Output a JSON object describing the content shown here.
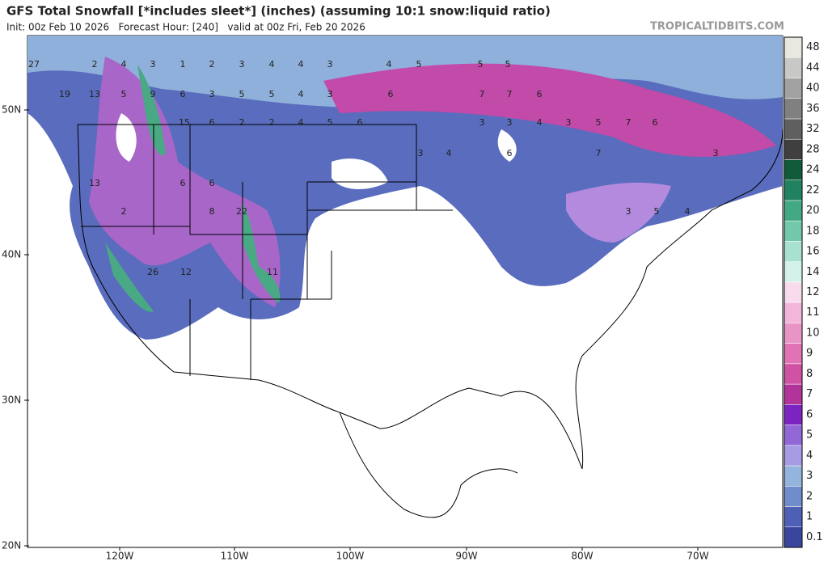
{
  "header": {
    "title": "GFS Total Snowfall [*includes sleet*] (inches) (assuming 10:1 snow:liquid ratio)",
    "subtitle": "Init: 00z Feb 10 2026   Forecast Hour: [240]   valid at 00z Fri, Feb 20 2026",
    "watermark": "TROPICALTIDBITS.COM"
  },
  "map": {
    "lat_labels": [
      "50N",
      "40N",
      "30N",
      "20N"
    ],
    "lon_labels": [
      "120W",
      "110W",
      "100W",
      "90W",
      "80W",
      "70W"
    ],
    "point_labels": [
      "27",
      "2",
      "4",
      "3",
      "1",
      "2",
      "3",
      "4",
      "4",
      "3",
      "4",
      "5",
      "5",
      "5",
      "19",
      "13",
      "5",
      "9",
      "6",
      "3",
      "5",
      "5",
      "4",
      "3",
      "6",
      "7",
      "7",
      "6",
      "15",
      "6",
      "2",
      "2",
      "4",
      "5",
      "6",
      "3",
      "3",
      "4",
      "3",
      "5",
      "7",
      "6",
      "13",
      "6",
      "6",
      "22",
      "8",
      "26",
      "12",
      "11",
      "2",
      "3",
      "4",
      "6",
      "7",
      "3",
      "5",
      "4",
      "3"
    ]
  },
  "colorbar": {
    "levels": [
      "0.1",
      "1",
      "2",
      "3",
      "4",
      "5",
      "6",
      "7",
      "8",
      "9",
      "10",
      "11",
      "12",
      "14",
      "16",
      "18",
      "20",
      "22",
      "24",
      "28",
      "32",
      "36",
      "40",
      "44",
      "48"
    ],
    "colors": [
      "#3a469e",
      "#4e5fb6",
      "#6f8ccb",
      "#93b4dc",
      "#a79be3",
      "#9168d6",
      "#7b24c2",
      "#b2339a",
      "#cf52a4",
      "#df73b4",
      "#e994c7",
      "#f1b6da",
      "#f8dcee",
      "#d4f2ea",
      "#a9e1d1",
      "#72c8aa",
      "#43a984",
      "#218261",
      "#115a3a",
      "#3f3f3f",
      "#5f5f5f",
      "#808080",
      "#a2a2a2",
      "#c8c8c6",
      "#e8e8e0"
    ]
  }
}
